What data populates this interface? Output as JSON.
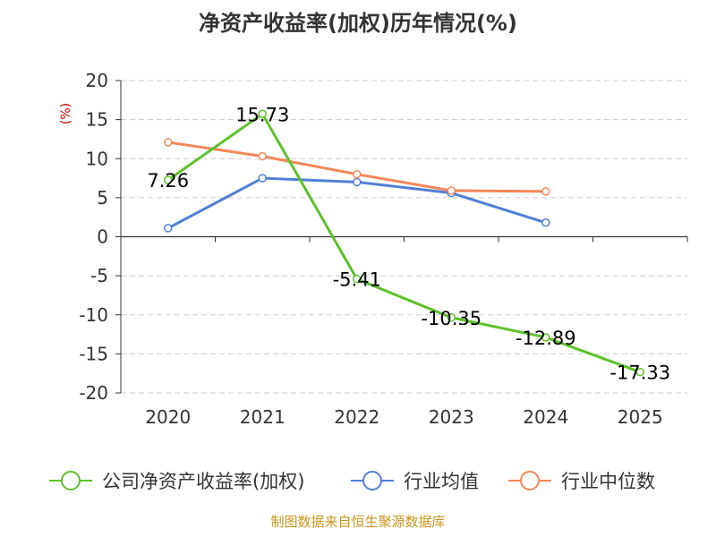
{
  "chart_data": {
    "type": "line",
    "title": "净资产收益率(加权)历年情况(%)",
    "ylabel": "(%)",
    "categories": [
      "2020",
      "2021",
      "2022",
      "2023",
      "2024",
      "2025"
    ],
    "ylim": [
      -20,
      20
    ],
    "yticks": [
      20,
      15,
      10,
      5,
      0,
      -5,
      -10,
      -15,
      -20
    ],
    "grid": true,
    "legend_position": "bottom",
    "series": [
      {
        "name": "公司净资产收益率(加权)",
        "color": "#5dc22a",
        "values": [
          7.26,
          15.73,
          -5.41,
          -10.35,
          -12.89,
          -17.33
        ],
        "labels": [
          "7.26",
          "15.73",
          "-5.41",
          "-10.35",
          "-12.89",
          "-17.33"
        ]
      },
      {
        "name": "行业均值",
        "color": "#4f7fd6",
        "values": [
          1.1,
          7.5,
          7.0,
          5.6,
          1.8,
          null
        ]
      },
      {
        "name": "行业中位数",
        "color": "#f5875a",
        "values": [
          12.1,
          10.3,
          8.0,
          5.9,
          5.8,
          null
        ]
      }
    ]
  },
  "source": "制图数据来自恒生聚源数据库"
}
